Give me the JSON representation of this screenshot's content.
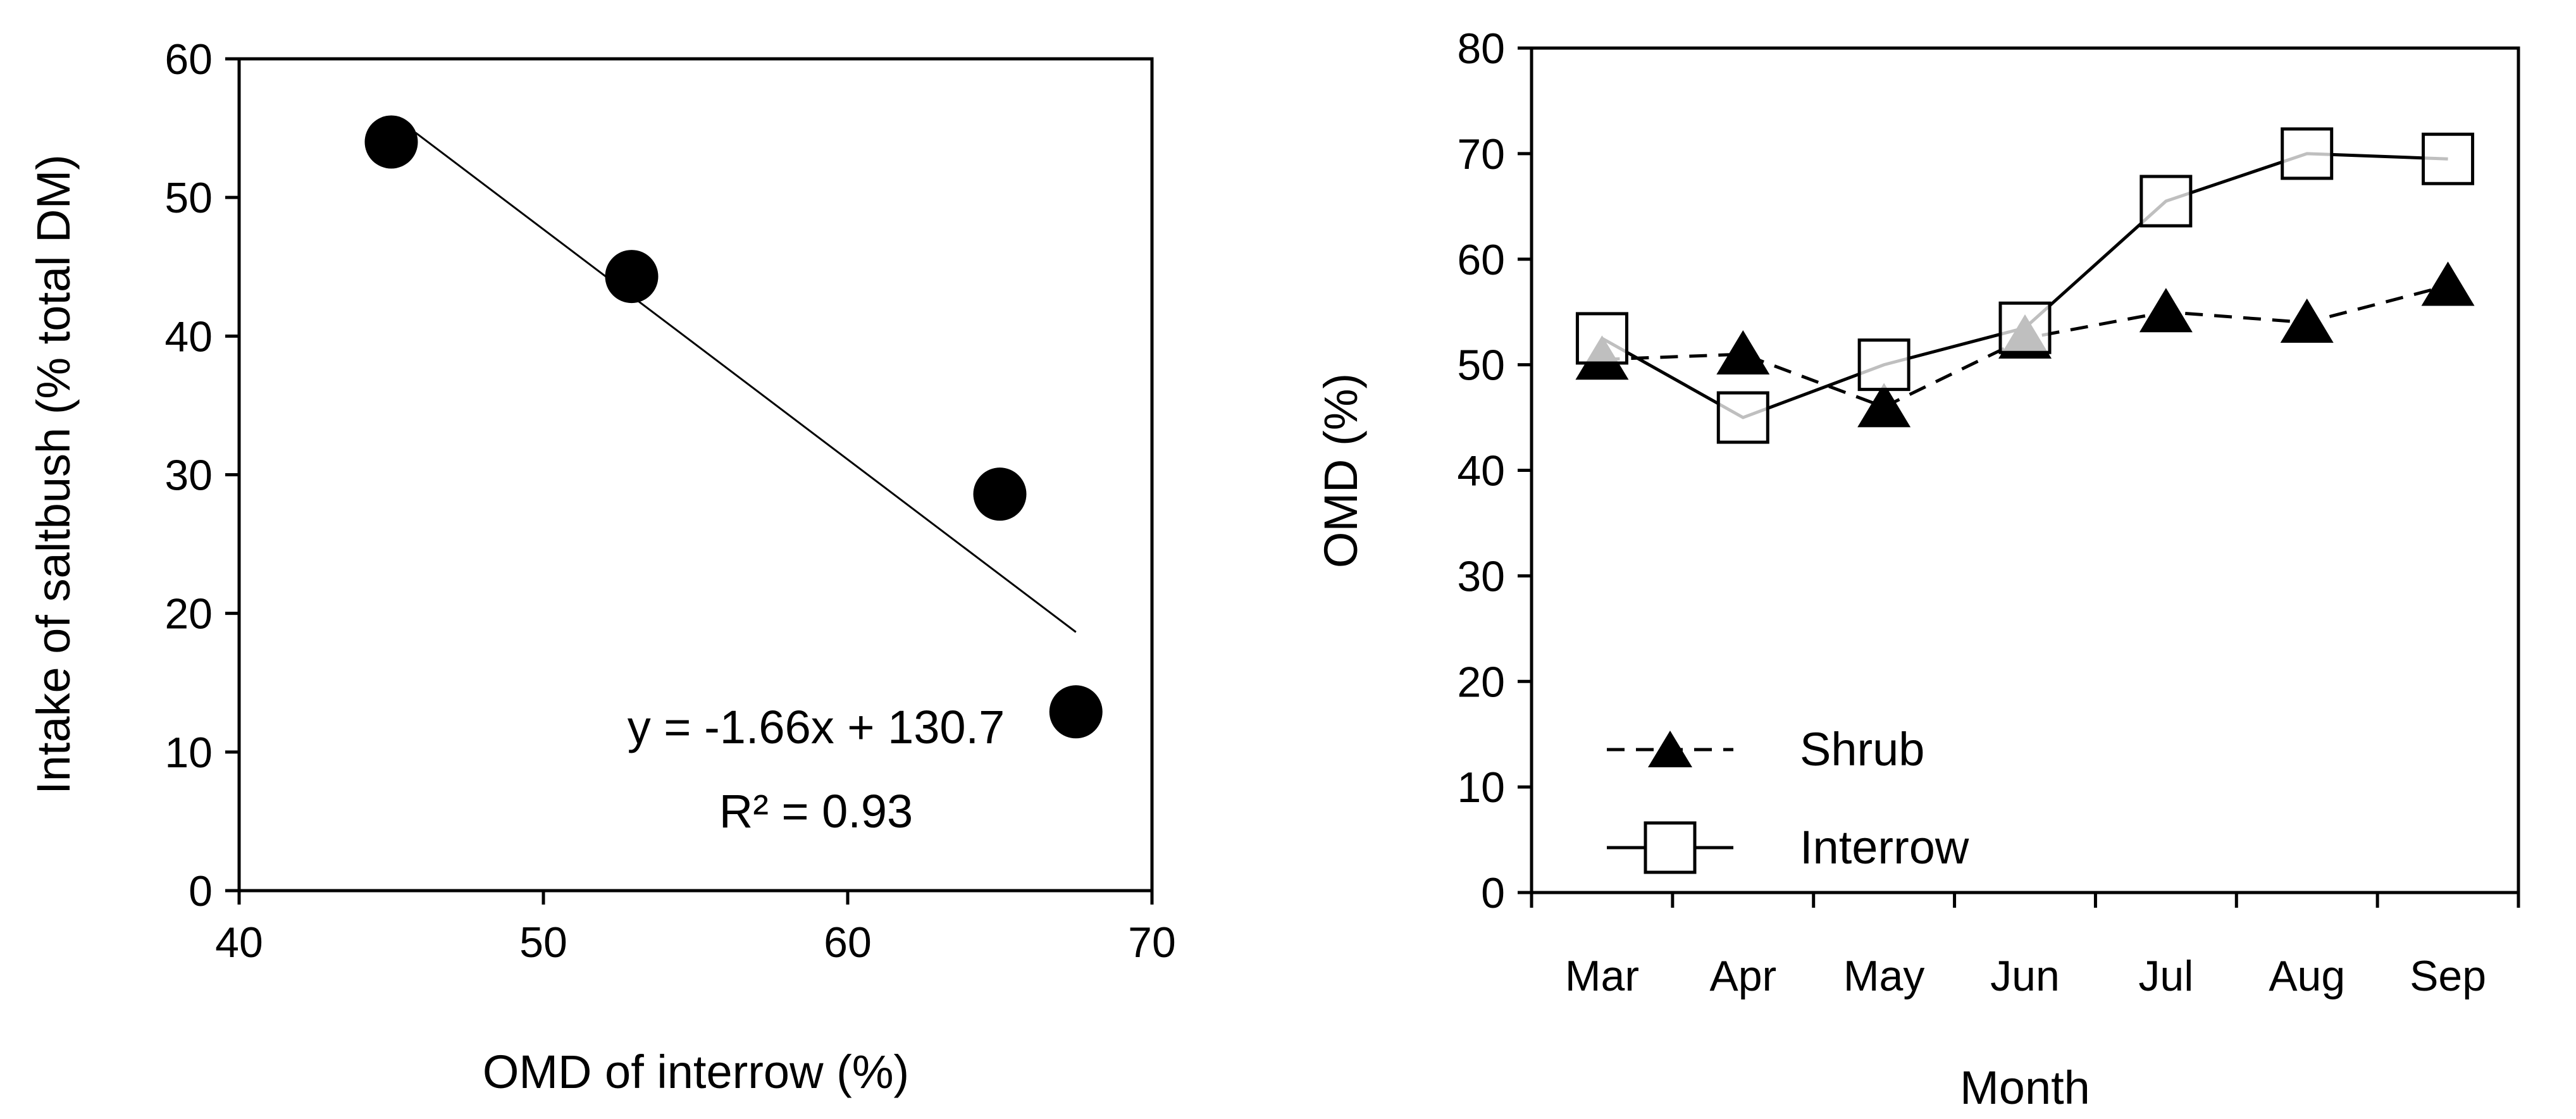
{
  "chart_data": [
    {
      "type": "scatter",
      "title": "",
      "xlabel": "OMD of interrow (%)",
      "ylabel": "Intake of saltbush (% total DM)",
      "xlim": [
        40,
        70
      ],
      "ylim": [
        0,
        60
      ],
      "xticks": [
        40,
        50,
        60,
        70
      ],
      "yticks": [
        0,
        10,
        20,
        30,
        40,
        50,
        60
      ],
      "grid": false,
      "points": [
        {
          "x": 45.0,
          "y": 54.0
        },
        {
          "x": 52.9,
          "y": 44.3
        },
        {
          "x": 65.0,
          "y": 28.6
        },
        {
          "x": 67.5,
          "y": 12.9
        }
      ],
      "trendline": {
        "slope": -1.66,
        "intercept": 130.7,
        "x_range": [
          45.8,
          67.5
        ]
      },
      "annotation": {
        "equation": "y = -1.66x + 130.7",
        "r2": "R² = 0.93"
      }
    },
    {
      "type": "line",
      "title": "",
      "xlabel": "Month",
      "ylabel": "OMD (%)",
      "categories": [
        "Mar",
        "Apr",
        "May",
        "Jun",
        "Jul",
        "Aug",
        "Sep"
      ],
      "ylim": [
        0,
        80
      ],
      "yticks": [
        0,
        10,
        20,
        30,
        40,
        50,
        60,
        70,
        80
      ],
      "grid": false,
      "legend_position": "bottom-left",
      "series": [
        {
          "name": "Shrub",
          "marker": "triangle-filled",
          "line": "dashed",
          "values": [
            50.5,
            51.0,
            46.0,
            52.5,
            55.0,
            54.0,
            57.5
          ]
        },
        {
          "name": "Interrow",
          "marker": "square-open",
          "line": "solid",
          "values": [
            52.5,
            45.0,
            50.0,
            53.5,
            65.5,
            70.0,
            69.5
          ]
        }
      ]
    }
  ]
}
